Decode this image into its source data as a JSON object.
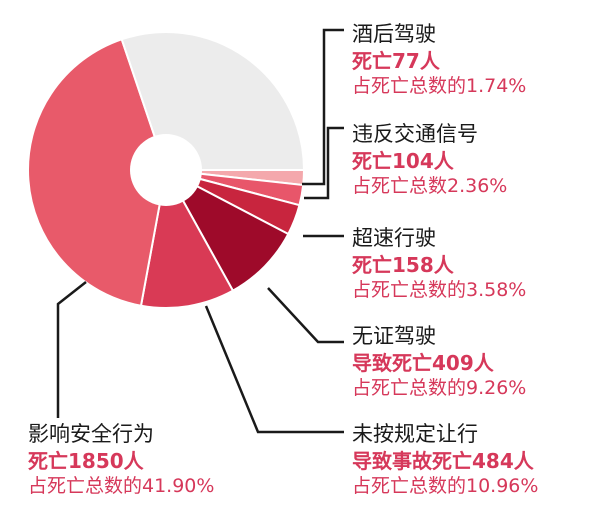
{
  "chart_data": {
    "type": "pie",
    "slices": [
      {
        "category": "酒后驾驶",
        "deaths_text": "死亡77人",
        "percent_text": "占死亡总数的1.74%",
        "value": 1.74,
        "color": "#f4a8ac"
      },
      {
        "category": "违反交通信号",
        "deaths_text": "死亡104人",
        "percent_text": "占死亡总数2.36%",
        "value": 2.36,
        "color": "#e8566a"
      },
      {
        "category": "超速行驶",
        "deaths_text": "死亡158人",
        "percent_text": "占死亡总数的3.58%",
        "value": 3.58,
        "color": "#c8253e"
      },
      {
        "category": "无证驾驶",
        "deaths_text": "导致死亡409人",
        "percent_text": "占死亡总数的9.26%",
        "value": 9.26,
        "color": "#9e0a2a"
      },
      {
        "category": "未按规定让行",
        "deaths_text": "导致事故死亡484人",
        "percent_text": "占死亡总数的10.96%",
        "value": 10.96,
        "color": "#d93a55"
      },
      {
        "category": "影响安全行为",
        "deaths_text": "死亡1850人",
        "percent_text": "占死亡总数的41.90%",
        "value": 41.9,
        "color": "#e85a6a"
      },
      {
        "category": "",
        "deaths_text": "",
        "percent_text": "",
        "value": 30.2,
        "color": "#ececec"
      }
    ]
  }
}
